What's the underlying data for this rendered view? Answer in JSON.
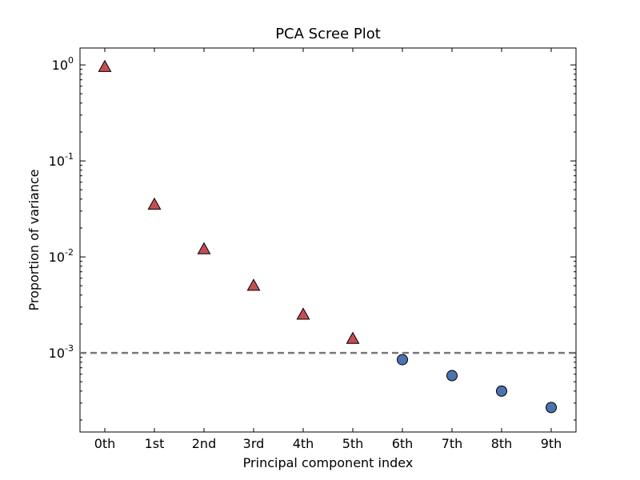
{
  "chart_data": {
    "type": "scatter",
    "title": "PCA Scree Plot",
    "xlabel": "Principal component index",
    "ylabel": "Proportion of variance",
    "categories": [
      "0th",
      "1st",
      "2nd",
      "3rd",
      "4th",
      "5th",
      "6th",
      "7th",
      "8th",
      "9th"
    ],
    "y_scale": "log",
    "ylim": [
      0.00015,
      1.5
    ],
    "y_ticks": [
      {
        "base": "10",
        "exp": "0",
        "value": 1
      },
      {
        "base": "10",
        "exp": "-1",
        "value": 0.1
      },
      {
        "base": "10",
        "exp": "-2",
        "value": 0.01
      },
      {
        "base": "10",
        "exp": "-3",
        "value": 0.001
      }
    ],
    "grid": false,
    "series": [
      {
        "marker": "triangle",
        "color": "#c44e52",
        "x": [
          0,
          1,
          2,
          3,
          4,
          5
        ],
        "values": [
          0.95,
          0.035,
          0.012,
          0.005,
          0.0025,
          0.0014
        ]
      },
      {
        "marker": "circle",
        "color": "#4c72b0",
        "x": [
          6,
          7,
          8,
          9
        ],
        "values": [
          0.00085,
          0.00058,
          0.0004,
          0.00027
        ]
      }
    ],
    "reference_line": {
      "value": 0.001,
      "color": "#777777",
      "style": "dashed"
    }
  }
}
